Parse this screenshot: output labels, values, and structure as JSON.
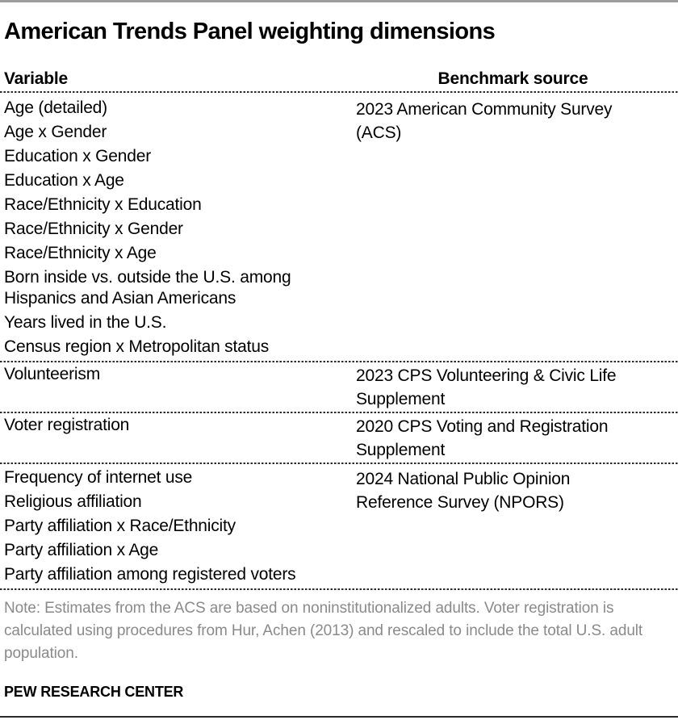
{
  "chart_data": {
    "type": "table",
    "title": "American Trends Panel weighting dimensions",
    "columns": [
      "Variable",
      "Benchmark source"
    ],
    "sections": [
      {
        "variables": [
          "Age (detailed)",
          "Age x Gender",
          "Education x Gender",
          "Education x Age",
          "Race/Ethnicity x Education",
          "Race/Ethnicity x Gender",
          "Race/Ethnicity x Age",
          "Born inside vs. outside the U.S. among Hispanics and Asian Americans",
          "Years lived in the U.S.",
          "Census region x Metropolitan status"
        ],
        "benchmark_source": "2023 American Community Survey (ACS)"
      },
      {
        "variables": [
          "Volunteerism"
        ],
        "benchmark_source": "2023 CPS Volunteering & Civic Life Supplement"
      },
      {
        "variables": [
          "Voter registration"
        ],
        "benchmark_source": "2020 CPS Voting and Registration Supplement"
      },
      {
        "variables": [
          "Frequency of internet use",
          "Religious affiliation",
          "Party affiliation x Race/Ethnicity",
          "Party affiliation x Age",
          "Party affiliation among registered voters"
        ],
        "benchmark_source": "2024 National Public Opinion Reference Survey (NPORS)"
      }
    ],
    "note": "Note: Estimates from the ACS are based on noninstitutionalized adults. Voter registration is calculated using procedures from Hur, Achen (2013) and rescaled to include the total U.S. adult population.",
    "branding": "PEW RESEARCH CENTER",
    "layout": {
      "grid": "off",
      "legend": "none",
      "separator_style": "dashed"
    }
  },
  "colors": {
    "text": "#000000",
    "note_text": "#8a8a8a",
    "top_rule": "#9c9c9c",
    "bottom_rule": "#2b2b2b",
    "separator": "#2d2d2d",
    "background": "#ffffff"
  }
}
